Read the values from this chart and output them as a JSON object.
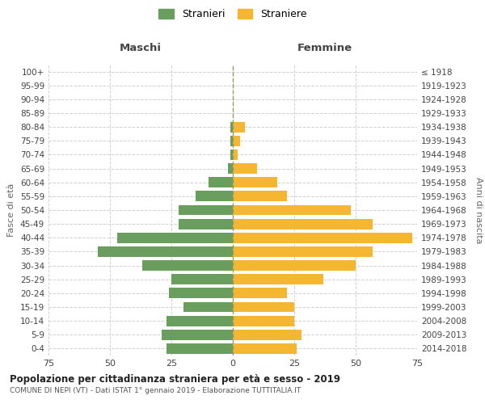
{
  "age_groups": [
    "0-4",
    "5-9",
    "10-14",
    "15-19",
    "20-24",
    "25-29",
    "30-34",
    "35-39",
    "40-44",
    "45-49",
    "50-54",
    "55-59",
    "60-64",
    "65-69",
    "70-74",
    "75-79",
    "80-84",
    "85-89",
    "90-94",
    "95-99",
    "100+"
  ],
  "birth_years": [
    "2014-2018",
    "2009-2013",
    "2004-2008",
    "1999-2003",
    "1994-1998",
    "1989-1993",
    "1984-1988",
    "1979-1983",
    "1974-1978",
    "1969-1973",
    "1964-1968",
    "1959-1963",
    "1954-1958",
    "1949-1953",
    "1944-1948",
    "1939-1943",
    "1934-1938",
    "1929-1933",
    "1924-1928",
    "1919-1923",
    "≤ 1918"
  ],
  "males": [
    27,
    29,
    27,
    20,
    26,
    25,
    37,
    55,
    47,
    22,
    22,
    15,
    10,
    2,
    1,
    1,
    1,
    0,
    0,
    0,
    0
  ],
  "females": [
    26,
    28,
    25,
    25,
    22,
    37,
    50,
    57,
    73,
    57,
    48,
    22,
    18,
    10,
    2,
    3,
    5,
    0,
    0,
    0,
    0
  ],
  "male_color": "#6a9e5e",
  "female_color": "#f5b731",
  "background_color": "#ffffff",
  "grid_color": "#cccccc",
  "title": "Popolazione per cittadinanza straniera per età e sesso - 2019",
  "subtitle": "COMUNE DI NEPI (VT) - Dati ISTAT 1° gennaio 2019 - Elaborazione TUTTITALIA.IT",
  "xlabel_left": "Maschi",
  "xlabel_right": "Femmine",
  "ylabel_left": "Fasce di età",
  "ylabel_right": "Anni di nascita",
  "xlim": 75,
  "tick_positions": [
    -75,
    -50,
    -25,
    0,
    25,
    50,
    75
  ],
  "legend_labels": [
    "Stranieri",
    "Straniere"
  ]
}
